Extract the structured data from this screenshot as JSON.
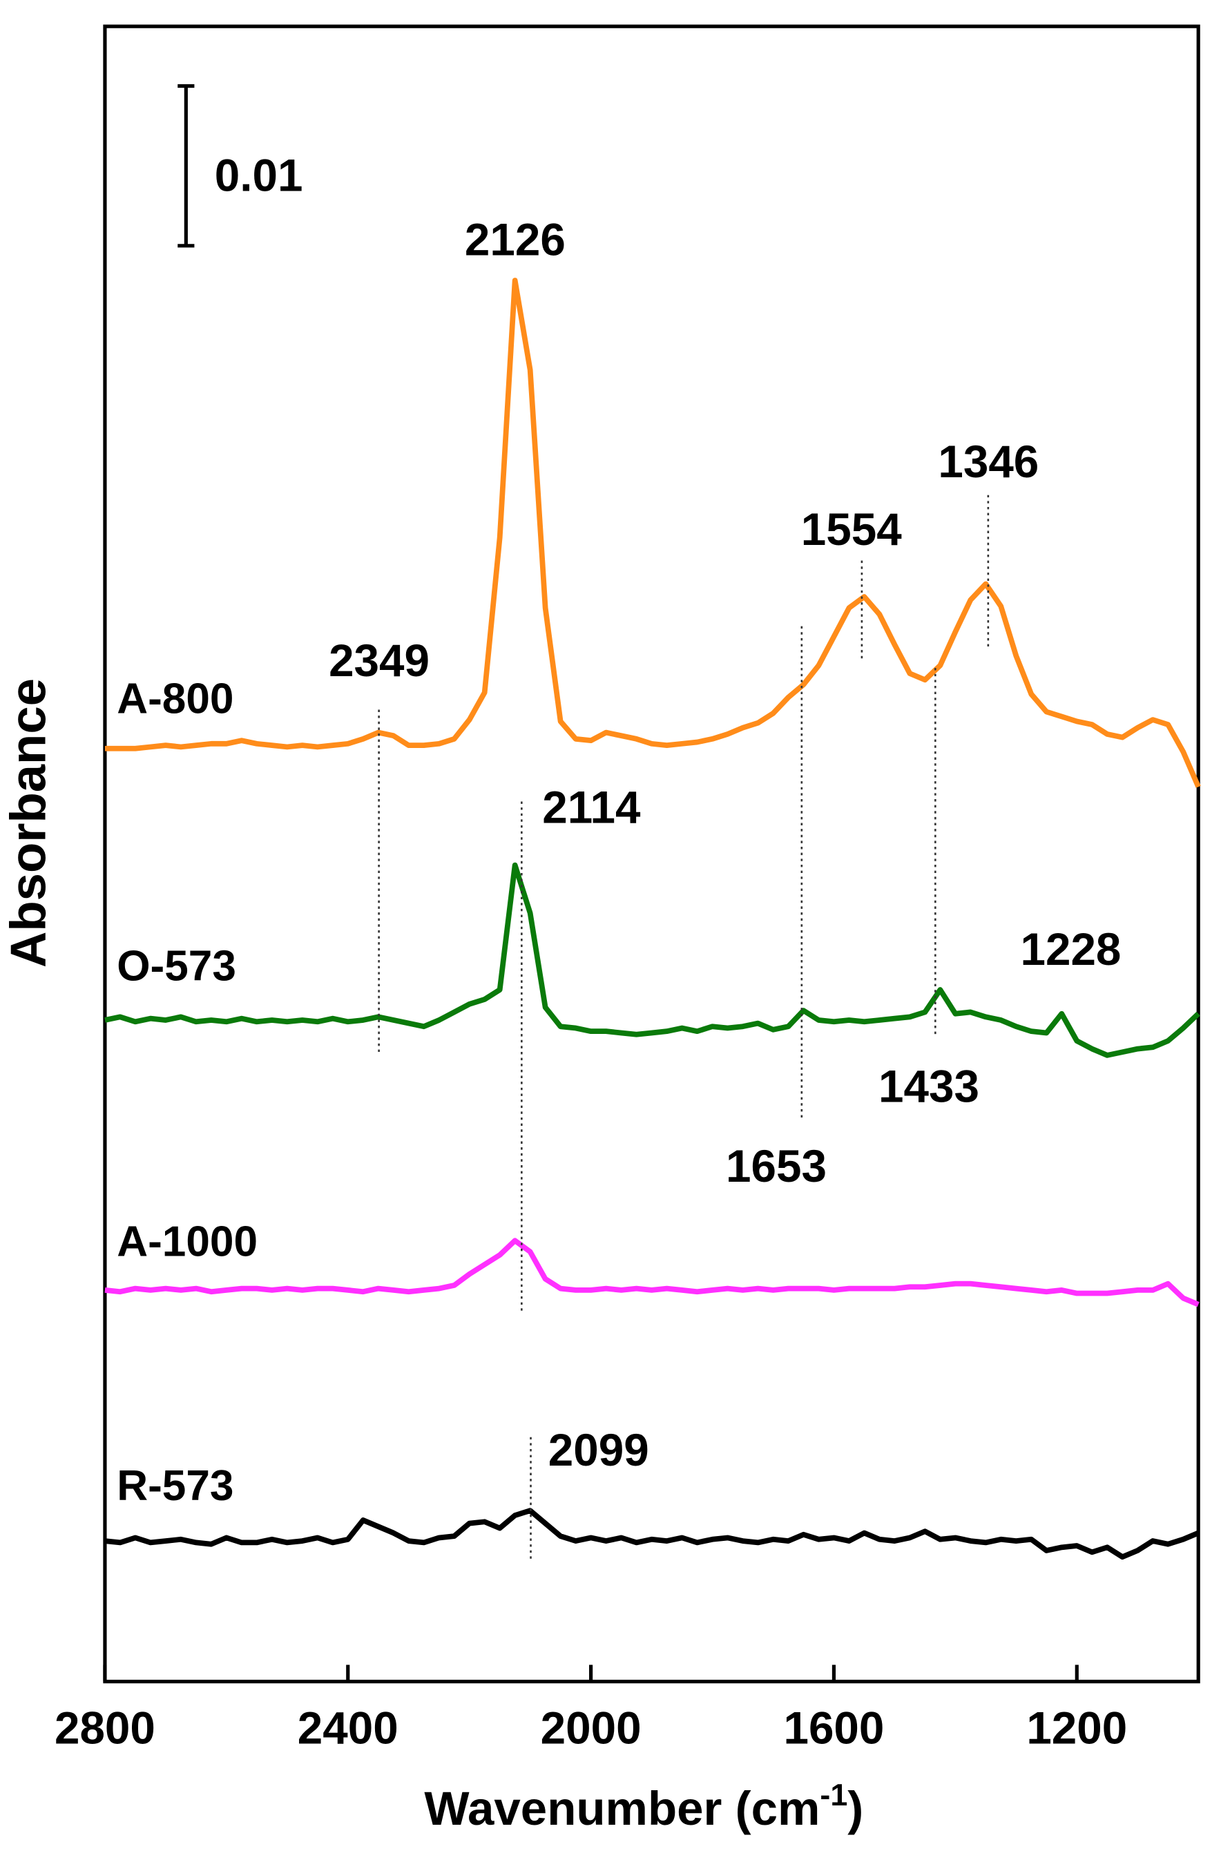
{
  "chart_data": {
    "type": "line",
    "xlabel": [
      "Wavenumber (cm",
      "-1",
      ")"
    ],
    "ylabel": "Absorbance",
    "xlim": [
      2800,
      1000
    ],
    "ylim": [
      0,
      0.1036
    ],
    "xticks": [
      2800,
      2400,
      2000,
      1600,
      1200
    ],
    "scale_bar": 0.01,
    "peaks": [
      2126,
      2349,
      2114,
      1554,
      1346,
      1653,
      1433,
      1228,
      2099
    ],
    "x": [
      2800,
      2775,
      2750,
      2725,
      2700,
      2675,
      2650,
      2625,
      2600,
      2575,
      2550,
      2525,
      2500,
      2475,
      2450,
      2425,
      2400,
      2375,
      2350,
      2325,
      2300,
      2275,
      2250,
      2225,
      2200,
      2175,
      2150,
      2125,
      2100,
      2075,
      2050,
      2025,
      2000,
      1975,
      1950,
      1925,
      1900,
      1875,
      1850,
      1825,
      1800,
      1775,
      1750,
      1725,
      1700,
      1675,
      1650,
      1625,
      1600,
      1575,
      1550,
      1525,
      1500,
      1475,
      1450,
      1425,
      1400,
      1375,
      1350,
      1325,
      1300,
      1275,
      1250,
      1225,
      1200,
      1175,
      1150,
      1125,
      1100,
      1075,
      1050,
      1025,
      1000
    ],
    "series": [
      {
        "name": "A-800",
        "color": "#ff8c1a",
        "values": [
          0.0584,
          0.0584,
          0.0584,
          0.0585,
          0.0586,
          0.0585,
          0.0586,
          0.0587,
          0.0587,
          0.0589,
          0.0587,
          0.0586,
          0.0585,
          0.0586,
          0.0585,
          0.0586,
          0.0587,
          0.059,
          0.0594,
          0.0592,
          0.0586,
          0.0586,
          0.0587,
          0.059,
          0.0602,
          0.0619,
          0.0716,
          0.0877,
          0.0821,
          0.0672,
          0.0601,
          0.059,
          0.0589,
          0.0594,
          0.0592,
          0.059,
          0.0587,
          0.0586,
          0.0587,
          0.0588,
          0.059,
          0.0593,
          0.0597,
          0.06,
          0.0606,
          0.0616,
          0.0624,
          0.0636,
          0.0654,
          0.0672,
          0.0679,
          0.0668,
          0.0649,
          0.0631,
          0.0627,
          0.0636,
          0.0657,
          0.0677,
          0.0687,
          0.0673,
          0.0642,
          0.0618,
          0.0607,
          0.0604,
          0.0601,
          0.0599,
          0.0593,
          0.0591,
          0.0597,
          0.0602,
          0.0599,
          0.0582,
          0.056
        ]
      },
      {
        "name": "O-573",
        "color": "#0a7a0a",
        "values": [
          0.0414,
          0.0416,
          0.0413,
          0.0415,
          0.0414,
          0.0416,
          0.0413,
          0.0414,
          0.0413,
          0.0415,
          0.0413,
          0.0414,
          0.0413,
          0.0414,
          0.0413,
          0.0415,
          0.0413,
          0.0414,
          0.0416,
          0.0414,
          0.0412,
          0.041,
          0.0414,
          0.0419,
          0.0424,
          0.0427,
          0.0433,
          0.0511,
          0.0481,
          0.0422,
          0.041,
          0.0409,
          0.0407,
          0.0407,
          0.0406,
          0.0405,
          0.0406,
          0.0407,
          0.0409,
          0.0407,
          0.041,
          0.0409,
          0.041,
          0.0412,
          0.0408,
          0.041,
          0.042,
          0.0414,
          0.0413,
          0.0414,
          0.0413,
          0.0414,
          0.0415,
          0.0416,
          0.0419,
          0.0433,
          0.0418,
          0.0419,
          0.0416,
          0.0414,
          0.041,
          0.0407,
          0.0406,
          0.0418,
          0.0401,
          0.0396,
          0.0392,
          0.0394,
          0.0396,
          0.0397,
          0.0401,
          0.0409,
          0.0418
        ]
      },
      {
        "name": "A-1000",
        "color": "#ff30ff",
        "values": [
          0.0245,
          0.0244,
          0.0246,
          0.0245,
          0.0246,
          0.0245,
          0.0246,
          0.0244,
          0.0245,
          0.0246,
          0.0246,
          0.0245,
          0.0246,
          0.0245,
          0.0246,
          0.0246,
          0.0245,
          0.0244,
          0.0246,
          0.0245,
          0.0244,
          0.0245,
          0.0246,
          0.0248,
          0.0255,
          0.0261,
          0.0267,
          0.0276,
          0.0269,
          0.0252,
          0.0246,
          0.0245,
          0.0245,
          0.0246,
          0.0245,
          0.0246,
          0.0245,
          0.0246,
          0.0245,
          0.0244,
          0.0245,
          0.0246,
          0.0245,
          0.0246,
          0.0245,
          0.0246,
          0.0246,
          0.0246,
          0.0245,
          0.0246,
          0.0246,
          0.0246,
          0.0246,
          0.0247,
          0.0247,
          0.0248,
          0.0249,
          0.0249,
          0.0248,
          0.0247,
          0.0246,
          0.0245,
          0.0244,
          0.0245,
          0.0243,
          0.0243,
          0.0243,
          0.0244,
          0.0245,
          0.0245,
          0.0249,
          0.024,
          0.0236
        ]
      },
      {
        "name": "R-573",
        "color": "#000000",
        "values": [
          0.0088,
          0.0087,
          0.009,
          0.0087,
          0.0088,
          0.0089,
          0.0087,
          0.0086,
          0.009,
          0.0087,
          0.0087,
          0.0089,
          0.0087,
          0.0088,
          0.009,
          0.0087,
          0.0089,
          0.0101,
          0.0097,
          0.0093,
          0.0088,
          0.0087,
          0.009,
          0.0091,
          0.0099,
          0.01,
          0.0096,
          0.0104,
          0.0107,
          0.0099,
          0.0091,
          0.0088,
          0.009,
          0.0088,
          0.009,
          0.0087,
          0.0089,
          0.0088,
          0.009,
          0.0087,
          0.0089,
          0.009,
          0.0088,
          0.0087,
          0.0089,
          0.0088,
          0.0092,
          0.0089,
          0.009,
          0.0088,
          0.0093,
          0.0089,
          0.0088,
          0.009,
          0.0094,
          0.0089,
          0.009,
          0.0088,
          0.0087,
          0.0089,
          0.0088,
          0.0089,
          0.0082,
          0.0084,
          0.0085,
          0.0081,
          0.0084,
          0.0078,
          0.0082,
          0.0088,
          0.0086,
          0.0089,
          0.0093
        ]
      }
    ]
  }
}
